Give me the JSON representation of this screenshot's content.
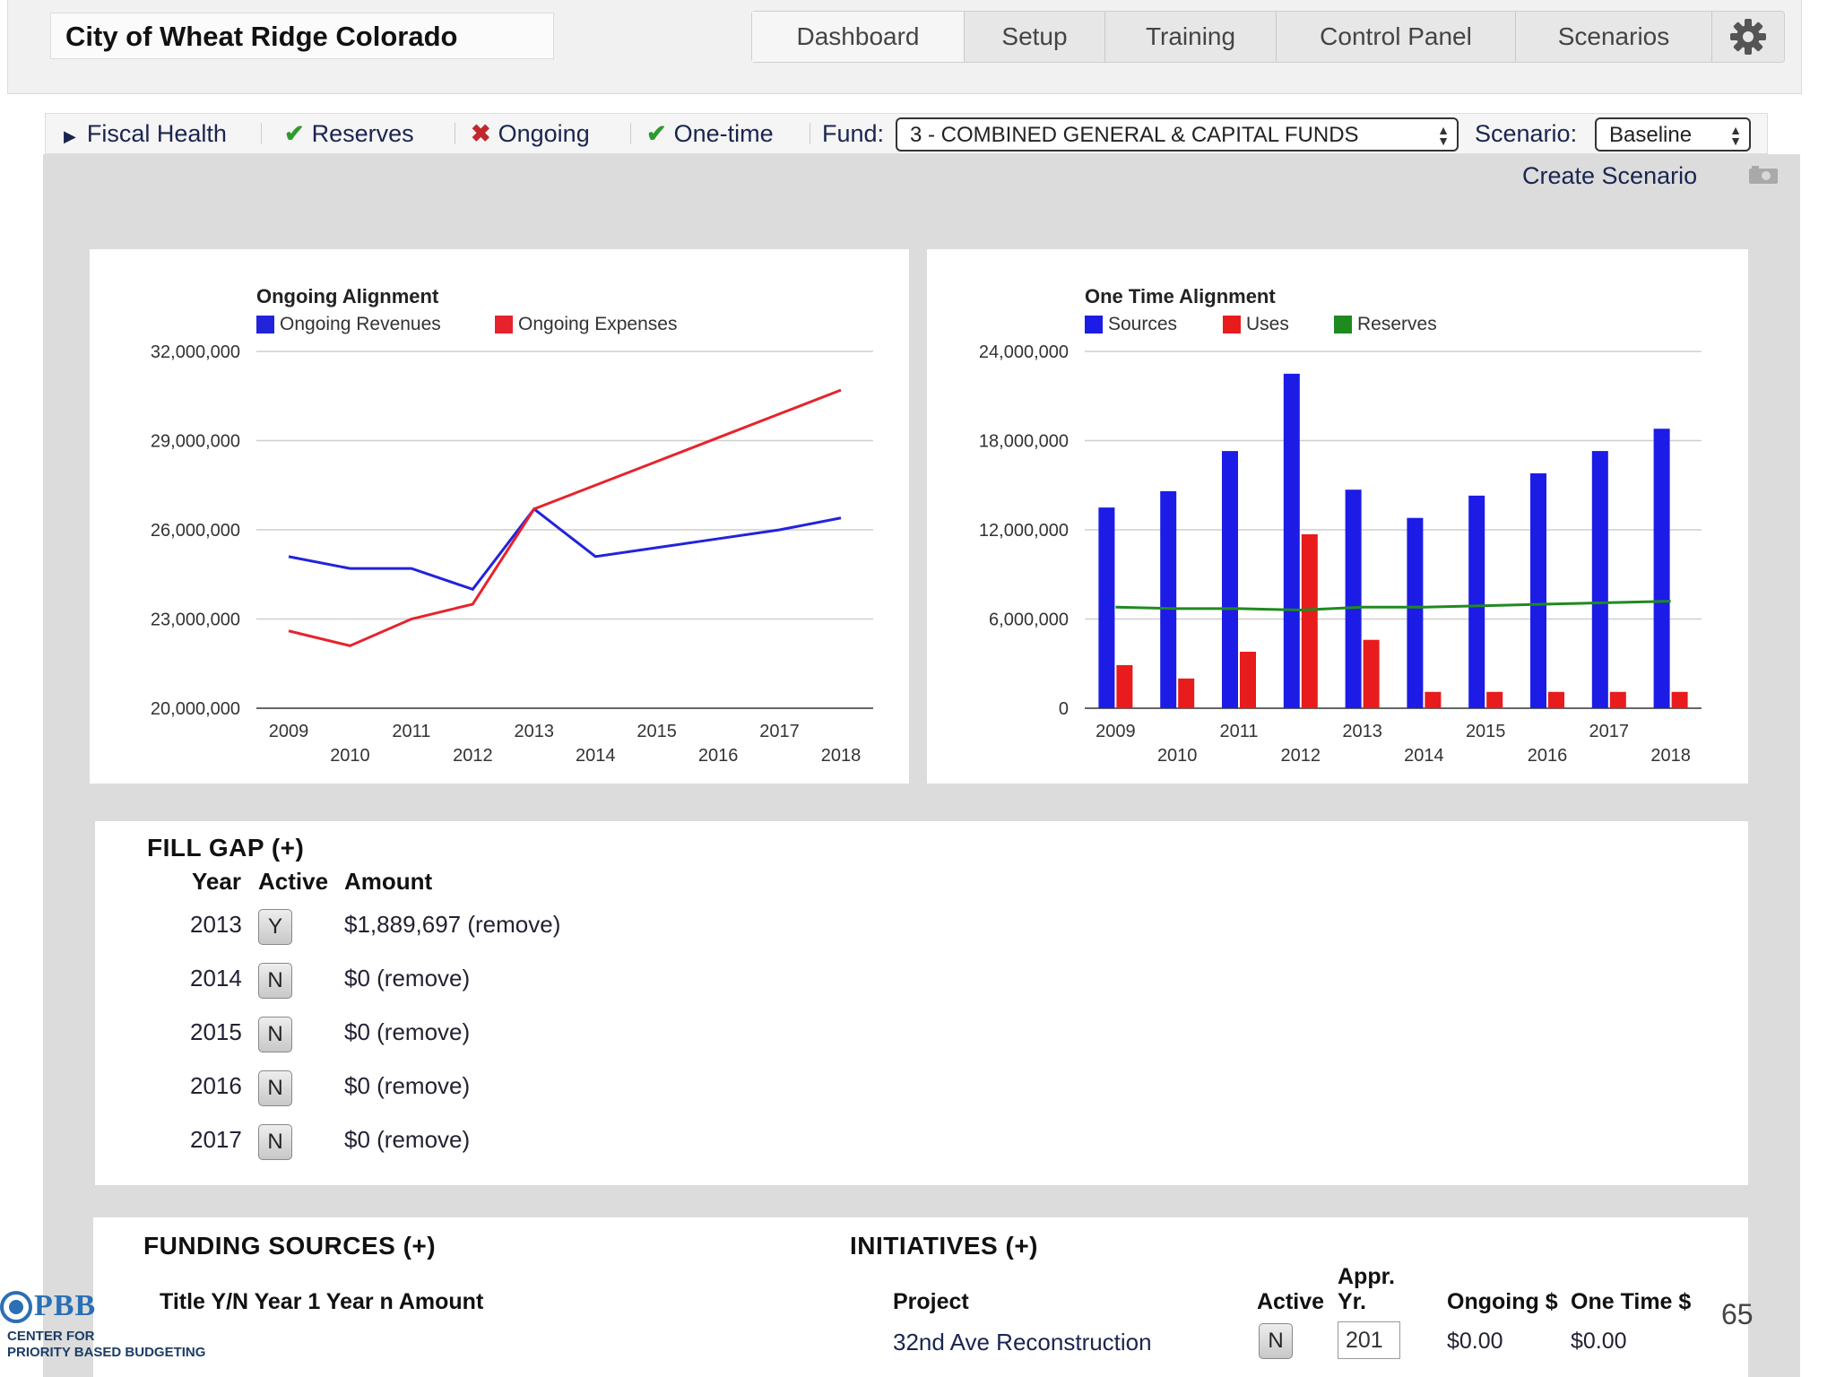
{
  "app": {
    "title": "City of Wheat Ridge Colorado"
  },
  "nav": {
    "tabs": [
      "Dashboard",
      "Setup",
      "Training",
      "Control Panel",
      "Scenarios"
    ],
    "active": "Dashboard",
    "settings_icon": "gear-icon"
  },
  "toolbar": {
    "fiscal_health": "Fiscal Health",
    "reserves": "Reserves",
    "ongoing": "Ongoing",
    "one_time": "One-time",
    "fund_label": "Fund:",
    "fund_value": "3 - COMBINED GENERAL & CAPITAL FUNDS",
    "scenario_label": "Scenario:",
    "scenario_value": "Baseline",
    "create_scenario": "Create Scenario",
    "status_colors": {
      "check": "#2e9a2e",
      "cross": "#c0282d"
    }
  },
  "chart_data": [
    {
      "type": "line",
      "title": "Ongoing Alignment",
      "x": [
        2009,
        2010,
        2011,
        2012,
        2013,
        2014,
        2015,
        2016,
        2017,
        2018
      ],
      "series": [
        {
          "name": "Ongoing Revenues",
          "color": "#2323dc",
          "values": [
            25100000,
            24700000,
            24700000,
            24000000,
            26700000,
            25100000,
            25400000,
            25700000,
            26000000,
            26400000
          ]
        },
        {
          "name": "Ongoing Expenses",
          "color": "#e6232d",
          "values": [
            22600000,
            22100000,
            23000000,
            23500000,
            26700000,
            27500000,
            28300000,
            29100000,
            29900000,
            30700000
          ]
        }
      ],
      "yticks": [
        "32,000,000",
        "29,000,000",
        "26,000,000",
        "23,000,000",
        "20,000,000"
      ],
      "ylim": [
        20000000,
        32000000
      ],
      "grid": true,
      "legend": "top"
    },
    {
      "type": "bar",
      "title": "One Time Alignment",
      "categories": [
        2009,
        2010,
        2011,
        2012,
        2013,
        2014,
        2015,
        2016,
        2017,
        2018
      ],
      "series": [
        {
          "name": "Sources",
          "color": "#1c1ce6",
          "values": [
            13500000,
            14600000,
            17300000,
            22500000,
            14700000,
            12800000,
            14300000,
            15800000,
            17300000,
            18800000
          ]
        },
        {
          "name": "Uses",
          "color": "#e81c1c",
          "values": [
            2900000,
            2000000,
            3800000,
            11700000,
            4600000,
            1100000,
            1100000,
            1100000,
            1100000,
            1100000
          ]
        },
        {
          "name": "Reserves",
          "type": "line",
          "color": "#1f8a1f",
          "values": [
            6800000,
            6700000,
            6700000,
            6600000,
            6800000,
            6800000,
            6900000,
            7000000,
            7100000,
            7200000
          ]
        }
      ],
      "yticks": [
        "24,000,000",
        "18,000,000",
        "12,000,000",
        "6,000,000",
        "0"
      ],
      "ylim": [
        0,
        24000000
      ],
      "grid": true,
      "legend": "top"
    }
  ],
  "fill_gap": {
    "title": "FILL GAP (+)",
    "headers": {
      "year": "Year",
      "active": "Active",
      "amount": "Amount"
    },
    "rows": [
      {
        "year": "2013",
        "active": "Y",
        "amount": "$1,889,697 (remove)"
      },
      {
        "year": "2014",
        "active": "N",
        "amount": "$0 (remove)"
      },
      {
        "year": "2015",
        "active": "N",
        "amount": "$0 (remove)"
      },
      {
        "year": "2016",
        "active": "N",
        "amount": "$0 (remove)"
      },
      {
        "year": "2017",
        "active": "N",
        "amount": "$0 (remove)"
      }
    ]
  },
  "funding_sources": {
    "title": "FUNDING SOURCES (+)",
    "headers": "Title Y/N Year 1 Year n Amount"
  },
  "initiatives": {
    "title": "INITIATIVES (+)",
    "headers": {
      "project": "Project",
      "active": "Active",
      "appr_yr_top": "Appr.",
      "appr_yr_bottom": "Yr.",
      "ongoing": "Ongoing $",
      "one_time": "One Time $"
    },
    "rows": [
      {
        "project": "32nd Ave Reconstruction",
        "active": "N",
        "appr_yr": "201",
        "ongoing": "$0.00",
        "one_time": "$0.00"
      }
    ]
  },
  "page_number": "65",
  "logo": {
    "text": "PBB",
    "line1": "CENTER FOR",
    "line2": "PRIORITY BASED BUDGETING"
  }
}
